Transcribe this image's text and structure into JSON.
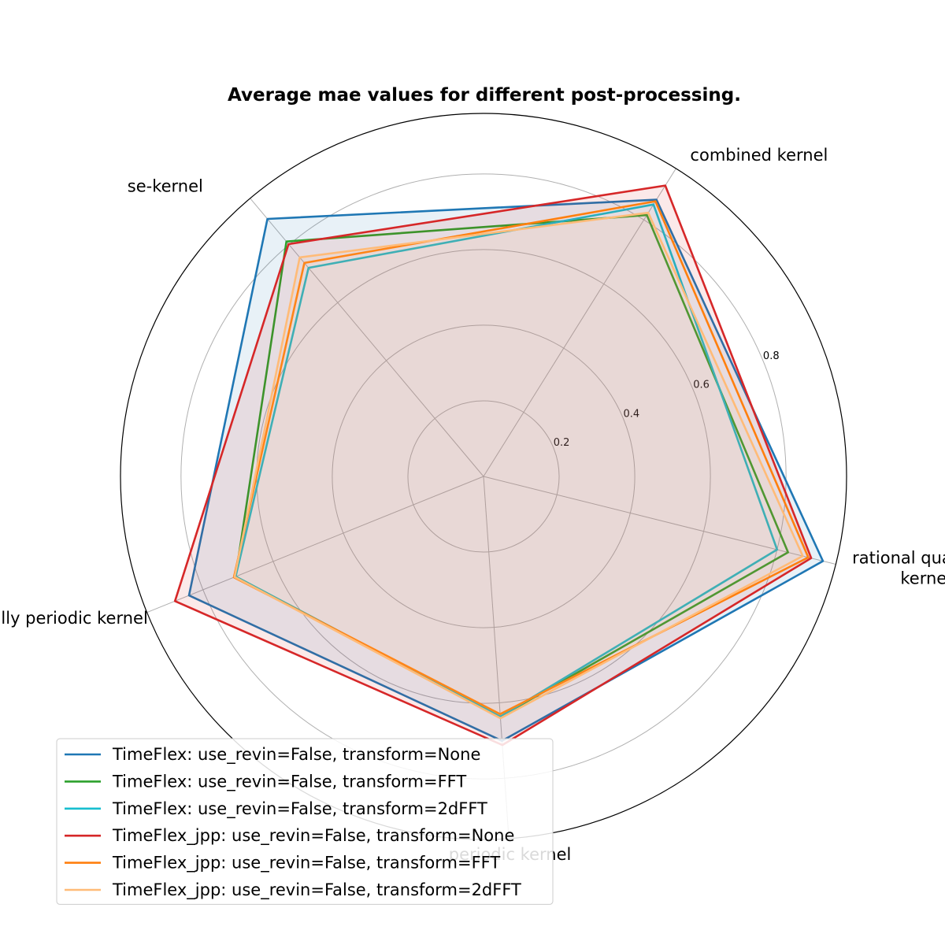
{
  "chart_data": {
    "type": "radar",
    "title": "Average mae values for different post-processing.",
    "axes": [
      [
        "rational quadratic",
        "kernel"
      ],
      [
        "combined kernel"
      ],
      [
        "se-kernel"
      ],
      [
        "locally periodic kernel"
      ],
      [
        "periodic kernel"
      ]
    ],
    "rlim": [
      0,
      0.96
    ],
    "rticks": [
      0.2,
      0.4,
      0.6,
      0.8
    ],
    "rtick_labels": [
      "0.2",
      "0.4",
      "0.6",
      "0.8"
    ],
    "grid": true,
    "legend_position": "lower-left",
    "series": [
      {
        "name": "TimeFlex: use_revin=False, transform=None",
        "color": "#1f77b4",
        "values": [
          0.925,
          0.863,
          0.889,
          0.84,
          0.701
        ],
        "fill": true
      },
      {
        "name": "TimeFlex: use_revin=False, transform=FFT",
        "color": "#2ca02c",
        "values": [
          0.83,
          0.815,
          0.811,
          0.707,
          0.637
        ],
        "fill": false
      },
      {
        "name": "TimeFlex: use_revin=False, transform=2dFFT",
        "color": "#17becf",
        "values": [
          0.8,
          0.848,
          0.72,
          0.707,
          0.637
        ],
        "fill": false
      },
      {
        "name": "TimeFlex_jpp: use_revin=False, transform=None",
        "color": "#d62728",
        "values": [
          0.893,
          0.907,
          0.802,
          0.88,
          0.712
        ],
        "fill": true
      },
      {
        "name": "TimeFlex_jpp: use_revin=False, transform=FFT",
        "color": "#ff7f0e",
        "values": [
          0.885,
          0.858,
          0.737,
          0.712,
          0.63
        ],
        "fill": false
      },
      {
        "name": "TimeFlex_jpp: use_revin=False, transform=2dFFT",
        "color": "#ffbb78",
        "values": [
          0.87,
          0.822,
          0.756,
          0.71,
          0.641
        ],
        "fill": true
      }
    ]
  }
}
